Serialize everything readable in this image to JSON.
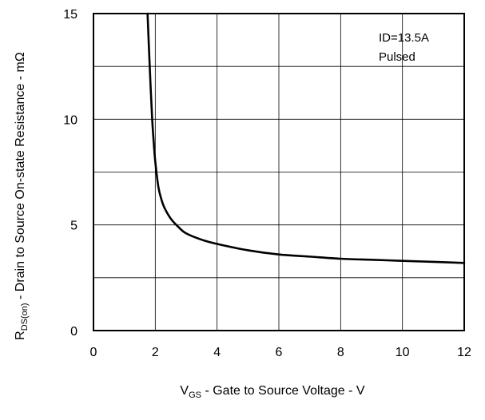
{
  "chart_data": {
    "type": "line",
    "title": "",
    "xlabel": {
      "main": "V",
      "sub": "GS",
      "rest": " - Gate to Source Voltage - V"
    },
    "ylabel": {
      "main": "R",
      "sub": "DS(on)",
      "rest": " - Drain to Source On-state Resistance - mΩ"
    },
    "xlim": [
      0,
      12
    ],
    "ylim": [
      0,
      15
    ],
    "xticks": [
      0,
      2,
      4,
      6,
      8,
      10,
      12
    ],
    "yticks": [
      0,
      5,
      10,
      15
    ],
    "xgrid": [
      2,
      4,
      6,
      8,
      10
    ],
    "ygrid": [
      2.5,
      5,
      7.5,
      10,
      12.5
    ],
    "grid": true,
    "annotations": [
      "ID=13.5A",
      "Pulsed"
    ],
    "series": [
      {
        "x": [
          1.75,
          1.8,
          1.85,
          1.9,
          1.95,
          2.0,
          2.1,
          2.2,
          2.3,
          2.5,
          2.75,
          3.0,
          3.5,
          4.0,
          5.0,
          6.0,
          7.0,
          8.0,
          9.0,
          10.0,
          11.0,
          12.0
        ],
        "y": [
          15.0,
          13.2,
          11.5,
          10.0,
          8.9,
          8.0,
          6.8,
          6.2,
          5.8,
          5.3,
          4.9,
          4.6,
          4.3,
          4.1,
          3.8,
          3.6,
          3.5,
          3.4,
          3.35,
          3.3,
          3.25,
          3.2
        ]
      }
    ]
  }
}
